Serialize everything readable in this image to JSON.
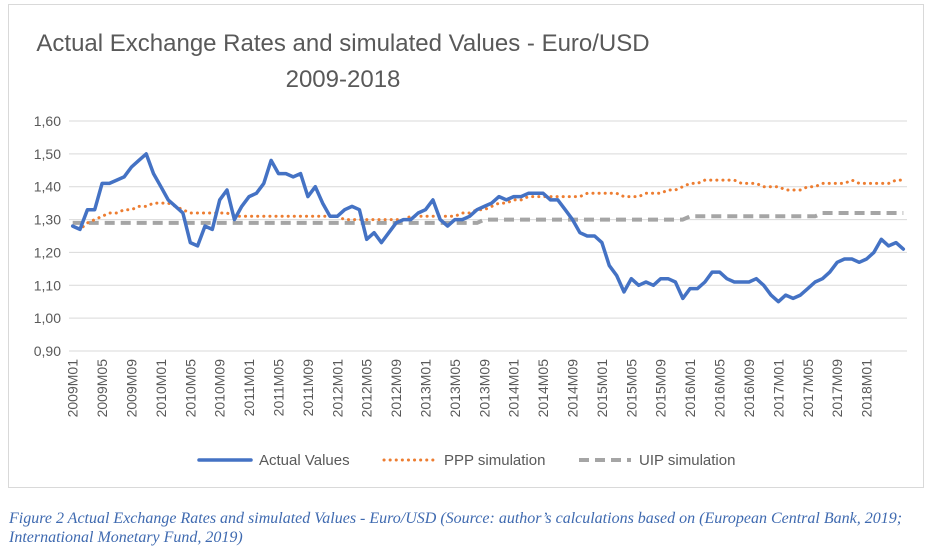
{
  "chart_data": {
    "type": "line",
    "title": "Actual Exchange Rates and simulated Values - Euro/USD",
    "subtitle": "2009-2018",
    "xlabel": "",
    "ylabel": "",
    "ylim": [
      0.9,
      1.6
    ],
    "yticks": [
      "0,90",
      "1,00",
      "1,10",
      "1,20",
      "1,30",
      "1,40",
      "1,50",
      "1,60"
    ],
    "ytick_values": [
      0.9,
      1.0,
      1.1,
      1.2,
      1.3,
      1.4,
      1.5,
      1.6
    ],
    "grid": true,
    "legend_position": "bottom",
    "x_tick_labels": [
      "2009M01",
      "2009M05",
      "2009M09",
      "2010M01",
      "2010M05",
      "2010M09",
      "2011M01",
      "2011M05",
      "2011M09",
      "2012M01",
      "2012M05",
      "2012M09",
      "2013M01",
      "2013M05",
      "2013M09",
      "2014M01",
      "2014M05",
      "2014M09",
      "2015M01",
      "2015M05",
      "2015M09",
      "2016M01",
      "2016M05",
      "2016M09",
      "2017M01",
      "2017M05",
      "2017M09",
      "2018M01"
    ],
    "x_tick_interval_months": 4,
    "series": [
      {
        "name": "Actual Values",
        "style": "solid",
        "color": "#4472c4",
        "values": [
          1.28,
          1.27,
          1.33,
          1.33,
          1.41,
          1.41,
          1.42,
          1.43,
          1.46,
          1.48,
          1.5,
          1.44,
          1.4,
          1.36,
          1.34,
          1.32,
          1.23,
          1.22,
          1.28,
          1.27,
          1.36,
          1.39,
          1.3,
          1.34,
          1.37,
          1.38,
          1.41,
          1.48,
          1.44,
          1.44,
          1.43,
          1.44,
          1.37,
          1.4,
          1.35,
          1.31,
          1.31,
          1.33,
          1.34,
          1.33,
          1.24,
          1.26,
          1.23,
          1.26,
          1.29,
          1.3,
          1.3,
          1.32,
          1.33,
          1.36,
          1.3,
          1.28,
          1.3,
          1.3,
          1.31,
          1.33,
          1.34,
          1.35,
          1.37,
          1.36,
          1.37,
          1.37,
          1.38,
          1.38,
          1.38,
          1.36,
          1.36,
          1.33,
          1.3,
          1.26,
          1.25,
          1.25,
          1.23,
          1.16,
          1.13,
          1.08,
          1.12,
          1.1,
          1.11,
          1.1,
          1.12,
          1.12,
          1.11,
          1.06,
          1.09,
          1.09,
          1.11,
          1.14,
          1.14,
          1.12,
          1.11,
          1.11,
          1.11,
          1.12,
          1.1,
          1.07,
          1.05,
          1.07,
          1.06,
          1.07,
          1.09,
          1.11,
          1.12,
          1.14,
          1.17,
          1.18,
          1.18,
          1.17,
          1.18,
          1.2,
          1.24,
          1.22,
          1.23,
          1.21
        ]
      },
      {
        "name": "PPP simulation",
        "style": "dotted",
        "color": "#ed7d31",
        "values": [
          1.28,
          1.27,
          1.29,
          1.3,
          1.31,
          1.32,
          1.32,
          1.33,
          1.33,
          1.34,
          1.34,
          1.35,
          1.35,
          1.35,
          1.34,
          1.33,
          1.32,
          1.32,
          1.32,
          1.32,
          1.32,
          1.32,
          1.31,
          1.31,
          1.31,
          1.31,
          1.31,
          1.31,
          1.31,
          1.31,
          1.31,
          1.31,
          1.31,
          1.31,
          1.31,
          1.31,
          1.31,
          1.3,
          1.3,
          1.3,
          1.3,
          1.3,
          1.3,
          1.3,
          1.3,
          1.3,
          1.31,
          1.31,
          1.31,
          1.31,
          1.31,
          1.31,
          1.31,
          1.32,
          1.32,
          1.33,
          1.33,
          1.34,
          1.35,
          1.35,
          1.36,
          1.36,
          1.37,
          1.37,
          1.37,
          1.37,
          1.37,
          1.37,
          1.37,
          1.37,
          1.38,
          1.38,
          1.38,
          1.38,
          1.38,
          1.37,
          1.37,
          1.37,
          1.38,
          1.38,
          1.38,
          1.39,
          1.39,
          1.4,
          1.41,
          1.41,
          1.42,
          1.42,
          1.42,
          1.42,
          1.42,
          1.41,
          1.41,
          1.41,
          1.4,
          1.4,
          1.4,
          1.39,
          1.39,
          1.39,
          1.4,
          1.4,
          1.41,
          1.41,
          1.41,
          1.41,
          1.42,
          1.41,
          1.41,
          1.41,
          1.41,
          1.41,
          1.42,
          1.42
        ]
      },
      {
        "name": "UIP simulation",
        "style": "dashed",
        "color": "#a5a5a5",
        "values": [
          1.29,
          1.29,
          1.29,
          1.29,
          1.29,
          1.29,
          1.29,
          1.29,
          1.29,
          1.29,
          1.29,
          1.29,
          1.29,
          1.29,
          1.29,
          1.29,
          1.29,
          1.29,
          1.29,
          1.29,
          1.29,
          1.29,
          1.29,
          1.29,
          1.29,
          1.29,
          1.29,
          1.29,
          1.29,
          1.29,
          1.29,
          1.29,
          1.29,
          1.29,
          1.29,
          1.29,
          1.29,
          1.29,
          1.29,
          1.29,
          1.29,
          1.29,
          1.29,
          1.29,
          1.29,
          1.29,
          1.29,
          1.29,
          1.29,
          1.29,
          1.29,
          1.29,
          1.29,
          1.29,
          1.29,
          1.29,
          1.3,
          1.3,
          1.3,
          1.3,
          1.3,
          1.3,
          1.3,
          1.3,
          1.3,
          1.3,
          1.3,
          1.3,
          1.3,
          1.3,
          1.3,
          1.3,
          1.3,
          1.3,
          1.3,
          1.3,
          1.3,
          1.3,
          1.3,
          1.3,
          1.3,
          1.3,
          1.3,
          1.3,
          1.31,
          1.31,
          1.31,
          1.31,
          1.31,
          1.31,
          1.31,
          1.31,
          1.31,
          1.31,
          1.31,
          1.31,
          1.31,
          1.31,
          1.31,
          1.31,
          1.31,
          1.31,
          1.32,
          1.32,
          1.32,
          1.32,
          1.32,
          1.32,
          1.32,
          1.32,
          1.32,
          1.32,
          1.32,
          1.32
        ]
      }
    ]
  },
  "caption": "Figure 2 Actual Exchange Rates and simulated Values - Euro/USD (Source: author’s calculations based on (European Central Bank, 2019; International Monetary Fund, 2019)"
}
